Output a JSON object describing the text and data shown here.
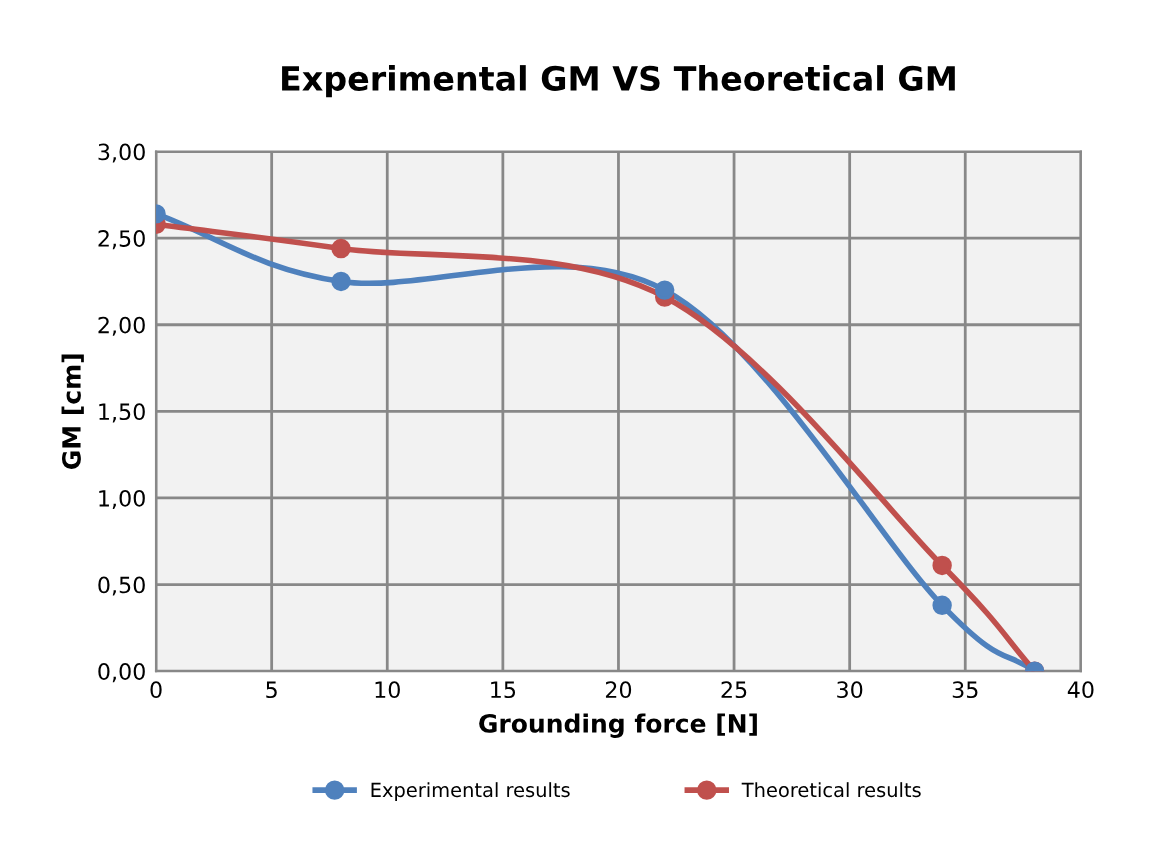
{
  "chart_data": {
    "type": "line",
    "title": "Experimental GM VS Theoretical GM",
    "xlabel": "Grounding force [N]",
    "ylabel": "GM [cm]",
    "series": [
      {
        "name": "Experimental results",
        "color": "#4f81bd",
        "x": [
          0,
          8,
          22,
          34,
          38
        ],
        "values": [
          2.64,
          2.25,
          2.2,
          0.38,
          0
        ]
      },
      {
        "name": "Theoretical results",
        "color": "#c0504d",
        "x": [
          0,
          8,
          22,
          34,
          38
        ],
        "values": [
          2.58,
          2.44,
          2.16,
          0.61,
          0
        ]
      }
    ],
    "xlim": [
      0,
      40
    ],
    "xticks": [
      0,
      5,
      10,
      15,
      20,
      25,
      30,
      35,
      40
    ],
    "ylim": [
      0,
      3
    ],
    "yticks": [
      {
        "value": 0,
        "label": "0,00"
      },
      {
        "value": 0.5,
        "label": "0,50"
      },
      {
        "value": 1,
        "label": "1,00"
      },
      {
        "value": 1.5,
        "label": "1,50"
      },
      {
        "value": 2,
        "label": "2,00"
      },
      {
        "value": 2.5,
        "label": "2,50"
      },
      {
        "value": 3,
        "label": "3,00"
      }
    ],
    "grid": true,
    "legend": "bottom",
    "marker": "circle",
    "line_style": "solid"
  }
}
